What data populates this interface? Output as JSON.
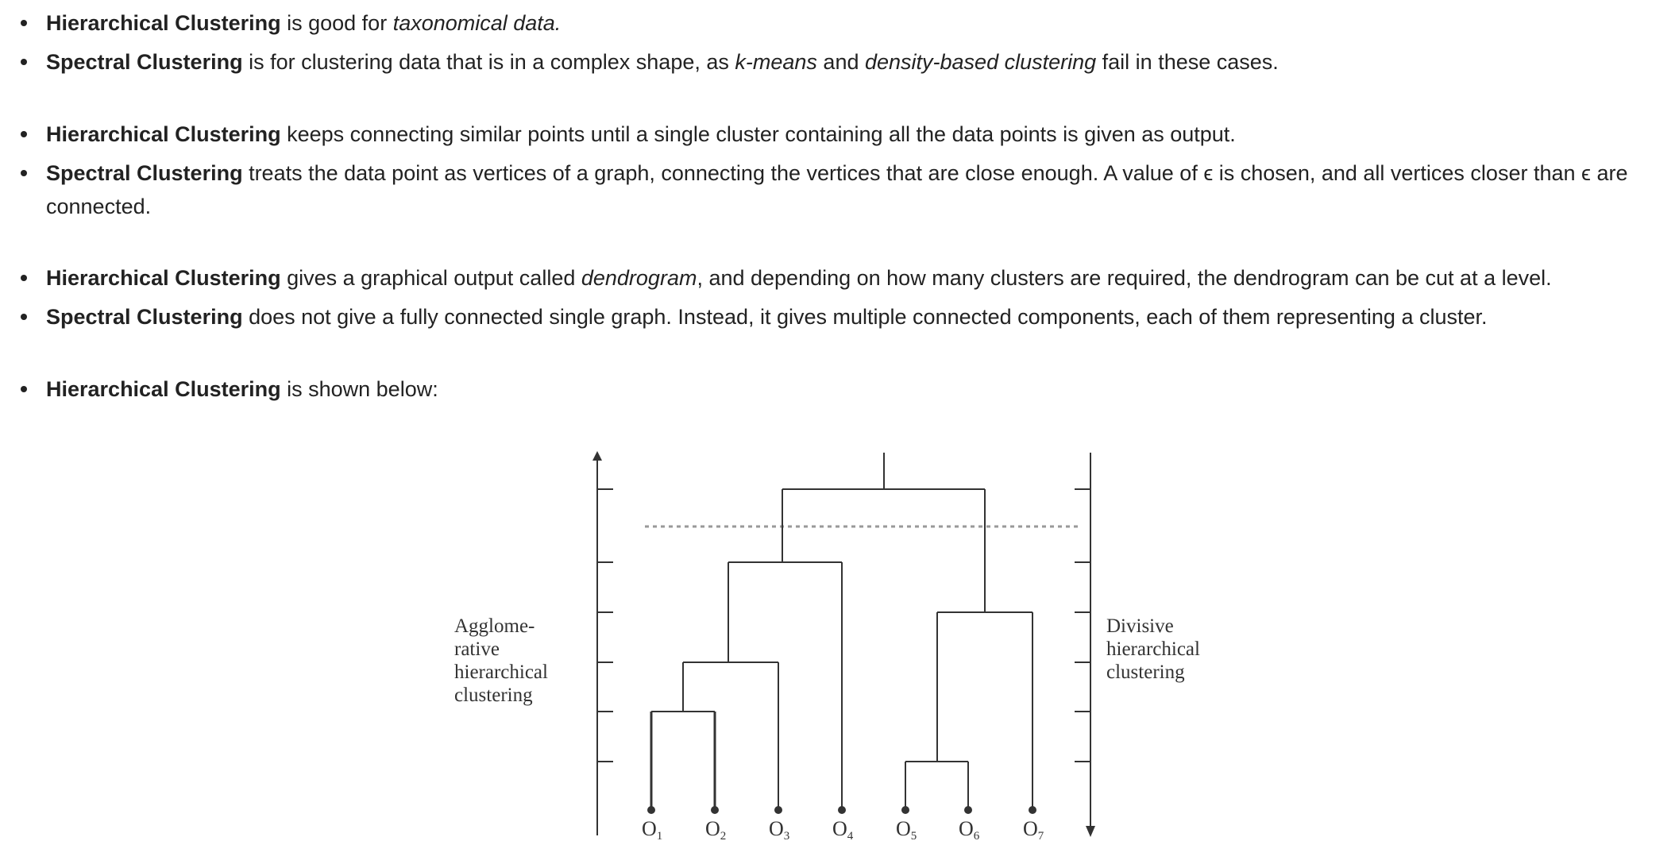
{
  "bullets": [
    {
      "parts": [
        [
          "b",
          "Hierarchical Clustering"
        ],
        [
          "t",
          " is good for "
        ],
        [
          "i",
          "taxonomical data."
        ]
      ]
    },
    {
      "parts": [
        [
          "b",
          "Spectral Clustering"
        ],
        [
          "t",
          " is for clustering data that is in a complex shape, as "
        ],
        [
          "i",
          "k-means"
        ],
        [
          "t",
          " and "
        ],
        [
          "i",
          "density-based clustering"
        ],
        [
          "t",
          " fail in these cases."
        ]
      ]
    },
    {
      "parts": [
        [
          "b",
          "Hierarchical Clustering"
        ],
        [
          "t",
          " keeps connecting similar points until a single cluster containing all the data points is given as output."
        ]
      ]
    },
    {
      "parts": [
        [
          "b",
          "Spectral Clustering"
        ],
        [
          "t",
          " treats the data point as vertices of a graph, connecting the vertices that are close enough. A value of "
        ],
        [
          "t",
          "ϵ"
        ],
        [
          "t",
          " is chosen, and all vertices closer than "
        ],
        [
          "t",
          "ϵ"
        ],
        [
          "t",
          " are connected."
        ]
      ]
    },
    {
      "parts": [
        [
          "b",
          "Hierarchical Clustering"
        ],
        [
          "t",
          " gives a graphical output called "
        ],
        [
          "i",
          "dendrogram"
        ],
        [
          "t",
          ", and depending on how many clusters are required, the dendrogram can be cut at a level."
        ]
      ]
    },
    {
      "parts": [
        [
          "b",
          "Spectral Clustering"
        ],
        [
          "t",
          " does not give a fully connected single graph. Instead, it gives multiple connected components, each of them representing a cluster."
        ]
      ]
    },
    {
      "parts": [
        [
          "b",
          "Hierarchical Clustering"
        ],
        [
          "t",
          " is shown below:"
        ]
      ]
    }
  ],
  "diagram": {
    "left_label": [
      "Agglome-",
      "rative",
      "hierarchical",
      "clustering"
    ],
    "right_label": [
      "Divisive",
      "hierarchical",
      "clustering"
    ],
    "leaves": [
      {
        "o": "O",
        "sub": "1"
      },
      {
        "o": "O",
        "sub": "2"
      },
      {
        "o": "O",
        "sub": "3"
      },
      {
        "o": "O",
        "sub": "4"
      },
      {
        "o": "O",
        "sub": "5"
      },
      {
        "o": "O",
        "sub": "6"
      },
      {
        "o": "O",
        "sub": "7"
      }
    ],
    "colors": {
      "line": "#333333",
      "dashed": "#999999"
    }
  }
}
